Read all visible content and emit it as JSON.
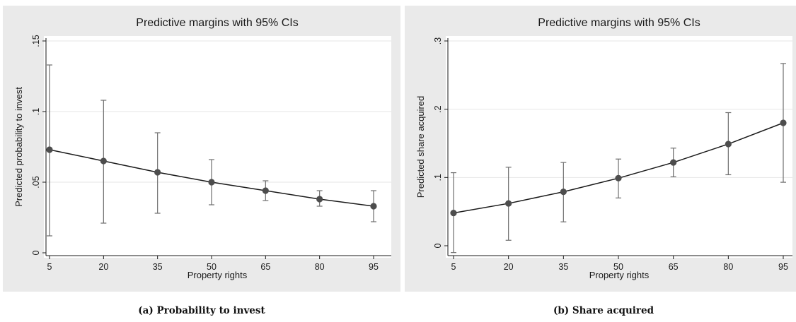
{
  "chart_data": [
    {
      "type": "line",
      "title": "Predictive margins with 95% CIs",
      "xlabel": "Property rights",
      "ylabel": "Predicted probability to invest",
      "caption": "(a) Probability to invest",
      "x": [
        5,
        20,
        35,
        50,
        65,
        80,
        95
      ],
      "x_ticks": [
        "5",
        "20",
        "35",
        "50",
        "65",
        "80",
        "95"
      ],
      "ylim": [
        0,
        0.15
      ],
      "y_ticks": [
        {
          "value": 0,
          "label": "0"
        },
        {
          "value": 0.05,
          "label": ".05"
        },
        {
          "value": 0.1,
          "label": ".1"
        },
        {
          "value": 0.15,
          "label": ".15"
        }
      ],
      "series": [
        {
          "values": [
            0.073,
            0.065,
            0.057,
            0.05,
            0.044,
            0.038,
            0.033
          ],
          "ci_lower": [
            0.012,
            0.021,
            0.028,
            0.034,
            0.037,
            0.033,
            0.022
          ],
          "ci_upper": [
            0.133,
            0.108,
            0.085,
            0.066,
            0.051,
            0.044,
            0.044
          ]
        }
      ],
      "grid": true,
      "colors": {
        "line": "#1a1a1a",
        "marker": "#4d4d4d",
        "ci": "#6e6e6e",
        "grid": "#e6e6e6",
        "background": "#eaeaea"
      }
    },
    {
      "type": "line",
      "title": "Predictive margins with 95% CIs",
      "xlabel": "Property rights",
      "ylabel": "Predicted share acquired",
      "caption": "(b) Share acquired",
      "x": [
        5,
        20,
        35,
        50,
        65,
        80,
        95
      ],
      "x_ticks": [
        "5",
        "20",
        "35",
        "50",
        "65",
        "80",
        "95"
      ],
      "ylim": [
        0,
        0.3
      ],
      "y_ticks": [
        {
          "value": 0,
          "label": "0"
        },
        {
          "value": 0.1,
          "label": ".1"
        },
        {
          "value": 0.2,
          "label": ".2"
        },
        {
          "value": 0.3,
          "label": ".3"
        }
      ],
      "series": [
        {
          "values": [
            0.048,
            0.062,
            0.079,
            0.099,
            0.122,
            0.149,
            0.18
          ],
          "ci_lower": [
            -0.01,
            0.008,
            0.035,
            0.07,
            0.101,
            0.104,
            0.093
          ],
          "ci_upper": [
            0.107,
            0.115,
            0.122,
            0.127,
            0.143,
            0.195,
            0.267
          ]
        }
      ],
      "grid": true,
      "colors": {
        "line": "#1a1a1a",
        "marker": "#4d4d4d",
        "ci": "#6e6e6e",
        "grid": "#e6e6e6",
        "background": "#eaeaea"
      }
    }
  ]
}
